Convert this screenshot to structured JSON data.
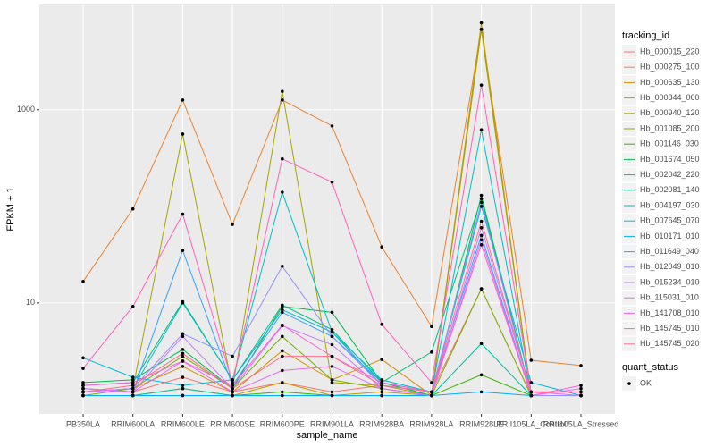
{
  "chart_data": {
    "type": "line",
    "x_label": "sample_name",
    "y_label": "FPKM + 1",
    "categories": [
      "PB350LA",
      "RRIM600LA",
      "RRIM600LE",
      "RRIM600SE",
      "RRIM600PE",
      "RRIM901LA",
      "RRIM928BA",
      "RRIM928LA",
      "RRIM928LE",
      "RRII105LA_Control",
      "RRII105LA_Stressed"
    ],
    "ylog": true,
    "ylim": [
      0.71,
      12300
    ],
    "yticks": [
      10,
      1000
    ],
    "grid": true,
    "legend_title": "tracking_id",
    "legend_position": "right",
    "shape_legend": {
      "title": "quant_status",
      "labels": [
        "OK"
      ]
    },
    "series": [
      {
        "name": "Hb_000015_220",
        "color": "#F8766D",
        "values": [
          1.3,
          1.2,
          1.7,
          1.2,
          1.5,
          1.2,
          1.4,
          1.2,
          14,
          1.1,
          1.1
        ]
      },
      {
        "name": "Hb_000275_100",
        "color": "#EA8331",
        "values": [
          16.7,
          94,
          1260,
          65,
          1260,
          680,
          38,
          5.7,
          6800,
          2.55,
          2.25
        ]
      },
      {
        "name": "Hb_000635_130",
        "color": "#D89000",
        "values": [
          1.2,
          1.3,
          2.2,
          1.2,
          3.2,
          1.6,
          2.6,
          1.1,
          6800,
          1.1,
          1.1
        ]
      },
      {
        "name": "Hb_000844_060",
        "color": "#C09B00",
        "values": [
          1.1,
          1.1,
          1.3,
          1.1,
          1.5,
          1.1,
          1.2,
          1.1,
          7940,
          1.1,
          1.1
        ]
      },
      {
        "name": "Hb_000940_120",
        "color": "#A3A500",
        "values": [
          1.2,
          1.3,
          560,
          1.3,
          1550,
          1.5,
          1.4,
          1.1,
          6800,
          1.1,
          1.1
        ]
      },
      {
        "name": "Hb_001085_200",
        "color": "#7CAE00",
        "values": [
          1.1,
          1.3,
          2.8,
          1.3,
          4.5,
          1.6,
          1.3,
          1.1,
          14,
          1.1,
          1.1
        ]
      },
      {
        "name": "Hb_001146_030",
        "color": "#39B600",
        "values": [
          1.1,
          1.1,
          1.1,
          1.1,
          1.2,
          1.1,
          1.1,
          1.1,
          1.8,
          1.1,
          1.1
        ]
      },
      {
        "name": "Hb_001674_050",
        "color": "#00BB4E",
        "values": [
          1.5,
          1.6,
          3.3,
          1.3,
          9.2,
          8.0,
          1.5,
          1.1,
          130,
          1.1,
          1.1
        ]
      },
      {
        "name": "Hb_002042_220",
        "color": "#00BF7D",
        "values": [
          1.4,
          1.5,
          10.3,
          1.6,
          9.5,
          5.3,
          1.5,
          3.1,
          120,
          1.1,
          1.1
        ]
      },
      {
        "name": "Hb_002081_140",
        "color": "#00C1A3",
        "values": [
          1.1,
          1.1,
          1.3,
          1.1,
          1.1,
          1.1,
          1.1,
          1.1,
          3.8,
          1.1,
          1.1
        ]
      },
      {
        "name": "Hb_004197_030",
        "color": "#00BFC4",
        "values": [
          1.2,
          1.3,
          10,
          1.6,
          140,
          5.0,
          1.6,
          1.2,
          620,
          1.1,
          1.1
        ]
      },
      {
        "name": "Hb_007645_070",
        "color": "#00BAE0",
        "values": [
          2.7,
          1.7,
          1.4,
          1.6,
          8.5,
          5.0,
          1.4,
          1.2,
          100,
          1.5,
          1.1
        ]
      },
      {
        "name": "Hb_010171_010",
        "color": "#00B0F6",
        "values": [
          1.1,
          1.1,
          1.1,
          1.1,
          1.1,
          1.1,
          1.1,
          1.1,
          1.2,
          1.1,
          1.1
        ]
      },
      {
        "name": "Hb_011649_040",
        "color": "#35A2FF",
        "values": [
          1.3,
          1.2,
          35,
          1.4,
          8.0,
          4.5,
          1.5,
          1.2,
          50,
          1.1,
          1.1
        ]
      },
      {
        "name": "Hb_012049_010",
        "color": "#9590FF",
        "values": [
          1.2,
          1.3,
          4.8,
          2.8,
          24,
          4.5,
          1.4,
          1.2,
          110,
          1.1,
          1.1
        ]
      },
      {
        "name": "Hb_015234_010",
        "color": "#C77CFF",
        "values": [
          1.2,
          1.2,
          4.5,
          1.3,
          5.8,
          3.7,
          1.3,
          1.1,
          60,
          1.2,
          1.1
        ]
      },
      {
        "name": "Hb_115031_010",
        "color": "#E76BF3",
        "values": [
          1.3,
          1.2,
          2.5,
          1.2,
          2.0,
          2.2,
          1.3,
          1.1,
          45,
          1.1,
          1.3
        ]
      },
      {
        "name": "Hb_141708_010",
        "color": "#FA62DB",
        "values": [
          1.4,
          1.5,
          2.5,
          1.4,
          5.9,
          2.8,
          1.5,
          1.2,
          40,
          1.1,
          1.4
        ]
      },
      {
        "name": "Hb_145745_010",
        "color": "#FF62BC",
        "values": [
          2.1,
          9.2,
          83,
          1.5,
          310,
          178,
          6.0,
          1.5,
          1800,
          1.2,
          1.2
        ]
      },
      {
        "name": "Hb_145745_020",
        "color": "#FF6C91",
        "values": [
          1.2,
          1.4,
          3.0,
          1.3,
          2.8,
          2.8,
          1.4,
          1.2,
          70,
          1.2,
          1.2
        ]
      }
    ]
  }
}
